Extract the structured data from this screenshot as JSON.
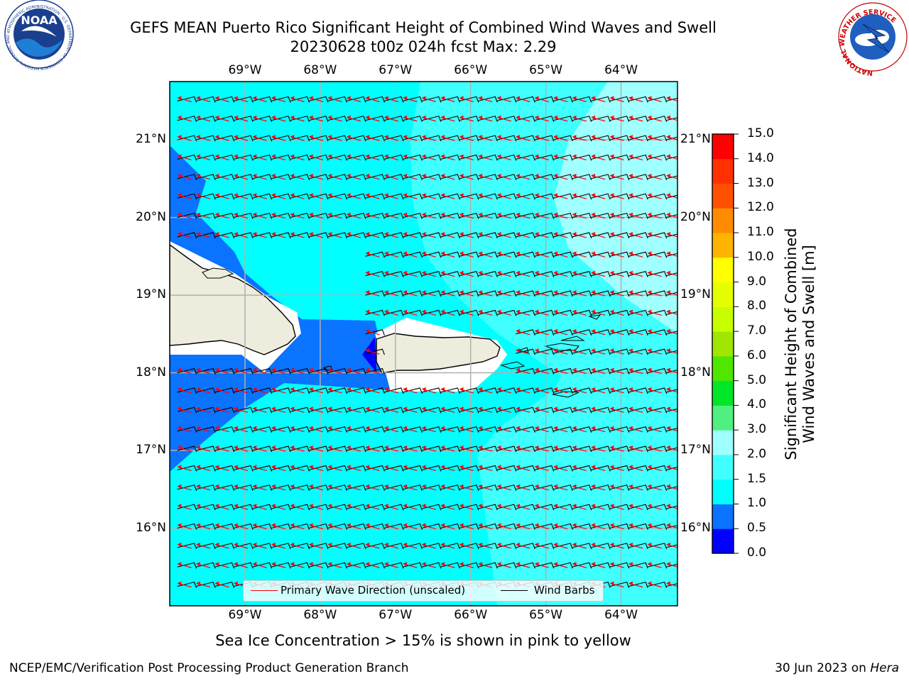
{
  "title": {
    "line1": "GEFS MEAN Puerto Rico Significant Height of Combined Wind Waves and Swell",
    "line2": "20230628 t00z 024h fcst   Max: 2.29"
  },
  "logos": {
    "noaa": {
      "text": "NOAA",
      "ring_text": "NATIONAL OCEANIC AND ATMOSPHERIC ADMINISTRATION · U.S. DEPARTMENT OF COMMERCE"
    },
    "nws": {
      "ring_text": "NATIONAL WEATHER SERVICE"
    }
  },
  "map": {
    "lon_ticks": [
      "69°W",
      "68°W",
      "67°W",
      "66°W",
      "65°W",
      "64°W"
    ],
    "lat_ticks": [
      "21°N",
      "20°N",
      "19°N",
      "18°N",
      "17°N",
      "16°N"
    ],
    "lon_values": [
      -69,
      -68,
      -67,
      -66,
      -65,
      -64
    ],
    "lat_values": [
      21,
      20,
      19,
      18,
      17,
      16
    ],
    "lon_range": [
      -70,
      -63.25
    ],
    "lat_range": [
      15.0,
      21.75
    ],
    "grid": true,
    "land_color": "#eeecdc",
    "primary_wave_color": "#ff0000",
    "wind_barb_color": "#000000",
    "wind_direction": "from the east-southeast",
    "wave_direction": "toward the west-northwest",
    "legend": {
      "primary_wave": "Primary Wave Direction (unscaled)",
      "wind_barbs": "Wind Barbs"
    }
  },
  "colorbar": {
    "label_line1": "Significant Height of Combined",
    "label_line2": "Wind Waves and Swell [m]",
    "ticks": [
      "15.0",
      "14.0",
      "13.0",
      "12.0",
      "11.0",
      "10.0",
      "9.0",
      "8.0",
      "7.0",
      "6.0",
      "5.0",
      "4.0",
      "3.0",
      "2.0",
      "1.5",
      "1.0",
      "0.5",
      "0.0"
    ],
    "colors_bottom_to_top": [
      "#0000ff",
      "#0a73ff",
      "#00ffff",
      "#40ffff",
      "#a0ffff",
      "#50f080",
      "#00e628",
      "#50e600",
      "#a0e600",
      "#c8ff00",
      "#e6ff00",
      "#ffff00",
      "#ffb400",
      "#ff8c00",
      "#ff5000",
      "#ff3000",
      "#ff0000"
    ]
  },
  "caption": "Sea Ice Concentration > 15% is shown in pink to yellow",
  "footer": {
    "left": "NCEP/EMC/Verification Post Processing Product Generation Branch",
    "date": "30 Jun 2023 on ",
    "machine": "Hera"
  }
}
